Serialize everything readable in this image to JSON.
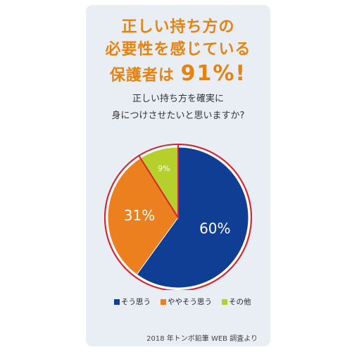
{
  "headline": {
    "line1": "正しい持ち方の",
    "line2": "必要性を感じている",
    "line3_prefix": "保護者は ",
    "line3_value": "91%!"
  },
  "question": {
    "line1": "正しい持ち方を確実に",
    "line2": "身につけさせたいと思いますか?"
  },
  "colors": {
    "accent": "#e8820f",
    "outline": "#d9232e"
  },
  "chart_data": {
    "type": "pie",
    "title": "",
    "series": [
      {
        "name": "そう思う",
        "value": 60,
        "label": "60%",
        "color": "#0f3e94"
      },
      {
        "name": "ややそう思う",
        "value": 31,
        "label": "31%",
        "color": "#ec7f1e"
      },
      {
        "name": "その他",
        "value": 9,
        "label": "9%",
        "color": "#b5cf2b"
      }
    ],
    "legend_position": "bottom"
  },
  "legend": [
    {
      "label": "そう思う",
      "color": "#0f3e94"
    },
    {
      "label": "ややそう思う",
      "color": "#ec7f1e"
    },
    {
      "label": "その他",
      "color": "#b5cf2b"
    }
  ],
  "source": "2018 年トンボ鉛筆 WEB 調査より"
}
